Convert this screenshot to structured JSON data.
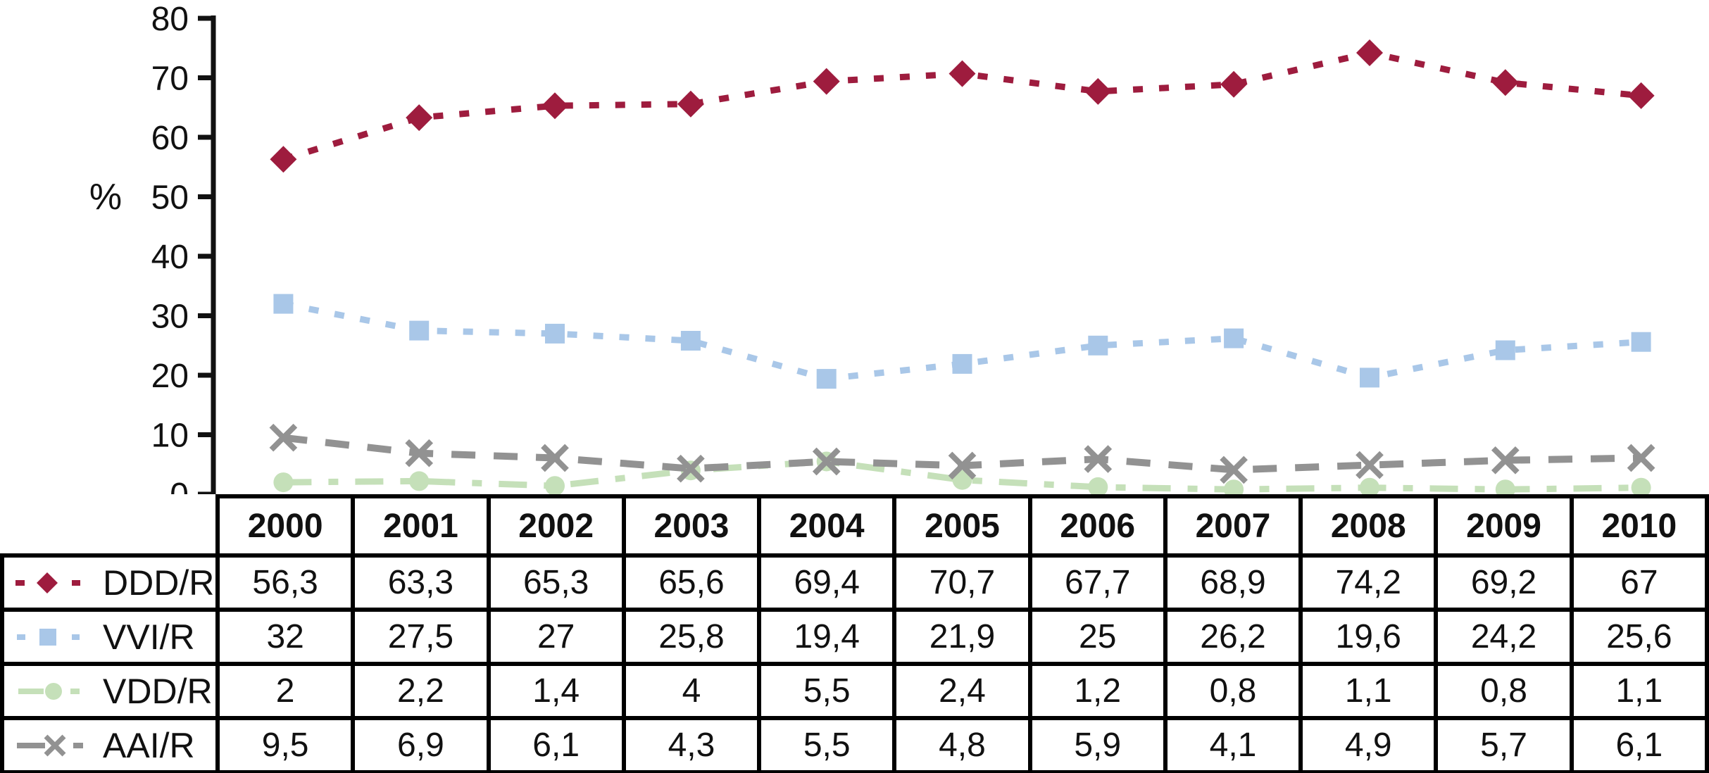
{
  "chart_data": {
    "type": "line",
    "title": "",
    "categories": [
      "2000",
      "2001",
      "2002",
      "2003",
      "2004",
      "2005",
      "2006",
      "2007",
      "2008",
      "2009",
      "2010"
    ],
    "series": [
      {
        "name": "DDD/R",
        "values": [
          56.3,
          63.3,
          65.3,
          65.6,
          69.4,
          70.7,
          67.7,
          68.9,
          74.2,
          69.2,
          67
        ],
        "color": "#9E1C3E",
        "marker": "diamond",
        "line_style": "dotted"
      },
      {
        "name": "VVI/R",
        "values": [
          32,
          27.5,
          27,
          25.8,
          19.4,
          21.9,
          25,
          26.2,
          19.6,
          24.2,
          25.6
        ],
        "color": "#A9C7E8",
        "marker": "square",
        "line_style": "dotted"
      },
      {
        "name": "VDD/R",
        "values": [
          2,
          2.2,
          1.4,
          4,
          5.5,
          2.4,
          1.2,
          0.8,
          1.1,
          0.8,
          1.1
        ],
        "color": "#C5E0B9",
        "marker": "circle",
        "line_style": "dash-dot"
      },
      {
        "name": "AAI/R",
        "values": [
          9.5,
          6.9,
          6.1,
          4.3,
          5.5,
          4.8,
          5.9,
          4.1,
          4.9,
          5.7,
          6.1
        ],
        "color": "#929292",
        "marker": "x",
        "line_style": "dashed"
      }
    ],
    "xlabel": "",
    "ylabel": "%",
    "ylim": [
      0,
      80
    ],
    "yticks": [
      0,
      10,
      20,
      30,
      40,
      50,
      60,
      70,
      80
    ],
    "grid": false,
    "legend_position": "table-left-column"
  },
  "table": {
    "header_years": [
      "2000",
      "2001",
      "2002",
      "2003",
      "2004",
      "2005",
      "2006",
      "2007",
      "2008",
      "2009",
      "2010"
    ],
    "rows": [
      {
        "label": "DDD/R",
        "values": [
          "56,3",
          "63,3",
          "65,3",
          "65,6",
          "69,4",
          "70,7",
          "67,7",
          "68,9",
          "74,2",
          "69,2",
          "67"
        ]
      },
      {
        "label": "VVI/R",
        "values": [
          "32",
          "27,5",
          "27",
          "25,8",
          "19,4",
          "21,9",
          "25",
          "26,2",
          "19,6",
          "24,2",
          "25,6"
        ]
      },
      {
        "label": "VDD/R",
        "values": [
          "2",
          "2,2",
          "1,4",
          "4",
          "5,5",
          "2,4",
          "1,2",
          "0,8",
          "1,1",
          "0,8",
          "1,1"
        ]
      },
      {
        "label": "AAI/R",
        "values": [
          "9,5",
          "6,9",
          "6,1",
          "4,3",
          "5,5",
          "4,8",
          "5,9",
          "4,1",
          "4,9",
          "5,7",
          "6,1"
        ]
      }
    ]
  },
  "colors": {
    "text": "#111111",
    "axis": "#111111",
    "table_border": "#000000",
    "background": "#FFFFFF"
  }
}
